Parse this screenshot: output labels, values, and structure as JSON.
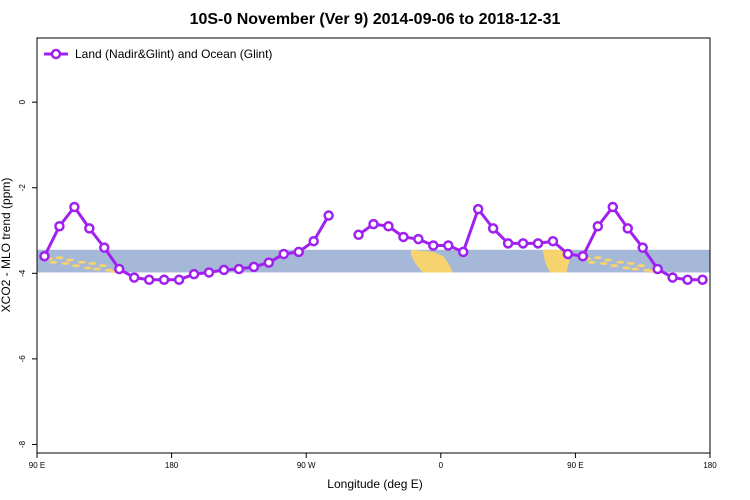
{
  "chart_data": {
    "type": "line",
    "title": "10S-0 November (Ver 9)   2014-09-06 to 2018-12-31",
    "xlabel": "Longitude (deg E)",
    "ylabel": "XCO2 - MLO trend (ppm)",
    "xlim": [
      90,
      540
    ],
    "ylim": [
      -8.2,
      1.5
    ],
    "x_ticks": [
      {
        "value": 90,
        "label": "90 E"
      },
      {
        "value": 180,
        "label": "180"
      },
      {
        "value": 270,
        "label": "90 W"
      },
      {
        "value": 360,
        "label": "0"
      },
      {
        "value": 450,
        "label": "90 E"
      },
      {
        "value": 540,
        "label": "180"
      }
    ],
    "y_ticks": [
      {
        "value": 0,
        "label": "0"
      },
      {
        "value": -2,
        "label": "-2"
      },
      {
        "value": -4,
        "label": "-4"
      },
      {
        "value": -6,
        "label": "-6"
      },
      {
        "value": -8,
        "label": "-8"
      }
    ],
    "grid": false,
    "legend_position": "top-left",
    "series": [
      {
        "name": "Land (Nadir&Glint) and Ocean (Glint)",
        "color": "#a020f0",
        "segments": [
          {
            "x": [
              95,
              105,
              115,
              125,
              135,
              145,
              155,
              165,
              175,
              185,
              195,
              205,
              215,
              225,
              235,
              245,
              255,
              265,
              275,
              285
            ],
            "y": [
              -3.6,
              -2.9,
              -2.45,
              -2.95,
              -3.4,
              -3.9,
              -4.1,
              -4.15,
              -4.15,
              -4.15,
              -4.02,
              -3.98,
              -3.92,
              -3.9,
              -3.85,
              -3.75,
              -3.55,
              -3.5,
              -3.25,
              -2.65
            ]
          },
          {
            "x": [
              305,
              315,
              325,
              335,
              345,
              355,
              365,
              375,
              385,
              395,
              405,
              415,
              425,
              435,
              445,
              455,
              465,
              475,
              485,
              495,
              505,
              515,
              525,
              535
            ],
            "y": [
              -3.1,
              -2.85,
              -2.9,
              -3.15,
              -3.2,
              -3.35,
              -3.35,
              -3.5,
              -2.5,
              -2.95,
              -3.3,
              -3.3,
              -3.3,
              -3.25,
              -3.55,
              -3.6,
              -2.9,
              -2.45,
              -2.95,
              -3.4,
              -3.9,
              -4.1,
              -4.15,
              -4.15
            ]
          }
        ]
      }
    ],
    "background_strip": {
      "y_range": [
        -3.45,
        -3.98
      ],
      "ocean_color": "#a5b8d8",
      "land_color": "#f7d36e"
    }
  }
}
